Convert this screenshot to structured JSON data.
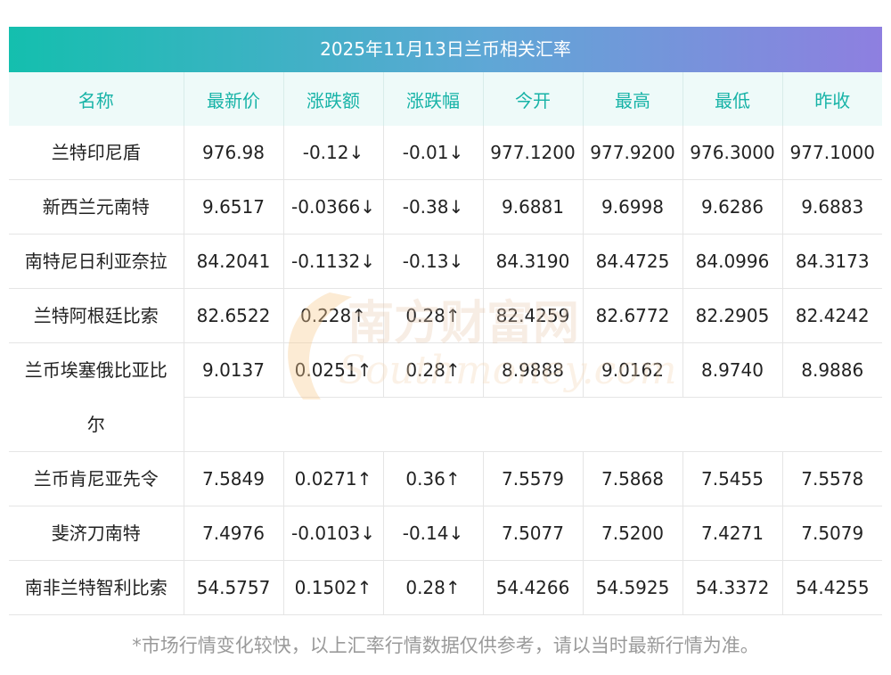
{
  "title": "2025年11月13日兰币相关汇率",
  "headers": [
    "名称",
    "最新价",
    "涨跌额",
    "涨跌幅",
    "今开",
    "最高",
    "最低",
    "昨收"
  ],
  "rows": [
    {
      "name": "兰特印尼盾",
      "latest": "976.98",
      "change": "-0.12↓",
      "pct": "-0.01↓",
      "open": "977.1200",
      "high": "977.9200",
      "low": "976.3000",
      "prev": "977.1000",
      "dir": "down"
    },
    {
      "name": "新西兰元南特",
      "latest": "9.6517",
      "change": "-0.0366↓",
      "pct": "-0.38↓",
      "open": "9.6881",
      "high": "9.6998",
      "low": "9.6286",
      "prev": "9.6883",
      "dir": "down"
    },
    {
      "name": "南特尼日利亚奈拉",
      "latest": "84.2041",
      "change": "-0.1132↓",
      "pct": "-0.13↓",
      "open": "84.3190",
      "high": "84.4725",
      "low": "84.0996",
      "prev": "84.3173",
      "dir": "down"
    },
    {
      "name": "兰特阿根廷比索",
      "latest": "82.6522",
      "change": "0.228↑",
      "pct": "0.28↑",
      "open": "82.4259",
      "high": "82.6772",
      "low": "82.2905",
      "prev": "82.4242",
      "dir": "up"
    },
    {
      "name_line1": "兰币埃塞俄比亚比",
      "name_line2": "尔",
      "latest": "9.0137",
      "change": "0.0251↑",
      "pct": "0.28↑",
      "open": "8.9888",
      "high": "9.0162",
      "low": "8.9740",
      "prev": "8.9886",
      "dir": "up"
    },
    {
      "name": "兰币肯尼亚先令",
      "latest": "7.5849",
      "change": "0.0271↑",
      "pct": "0.36↑",
      "open": "7.5579",
      "high": "7.5868",
      "low": "7.5455",
      "prev": "7.5578",
      "dir": "up"
    },
    {
      "name": "斐济刀南特",
      "latest": "7.4976",
      "change": "-0.0103↓",
      "pct": "-0.14↓",
      "open": "7.5077",
      "high": "7.5200",
      "low": "7.4271",
      "prev": "7.5079",
      "dir": "down"
    },
    {
      "name": "南非兰特智利比索",
      "latest": "54.5757",
      "change": "0.1502↑",
      "pct": "0.28↑",
      "open": "54.4266",
      "high": "54.5925",
      "low": "54.3372",
      "prev": "54.4255",
      "dir": "up"
    }
  ],
  "watermark": {
    "cn": "南方财富网",
    "en": "Southmoney.com"
  },
  "note": "*市场行情变化较快，以上汇率行情数据仅供参考，请以当时最新行情为准。",
  "colors": {
    "up": "#e8242a",
    "down": "#2e8b2a",
    "header_text": "#17b3a7",
    "gradient_start": "#14bfae",
    "gradient_end": "#8e7fe0"
  }
}
